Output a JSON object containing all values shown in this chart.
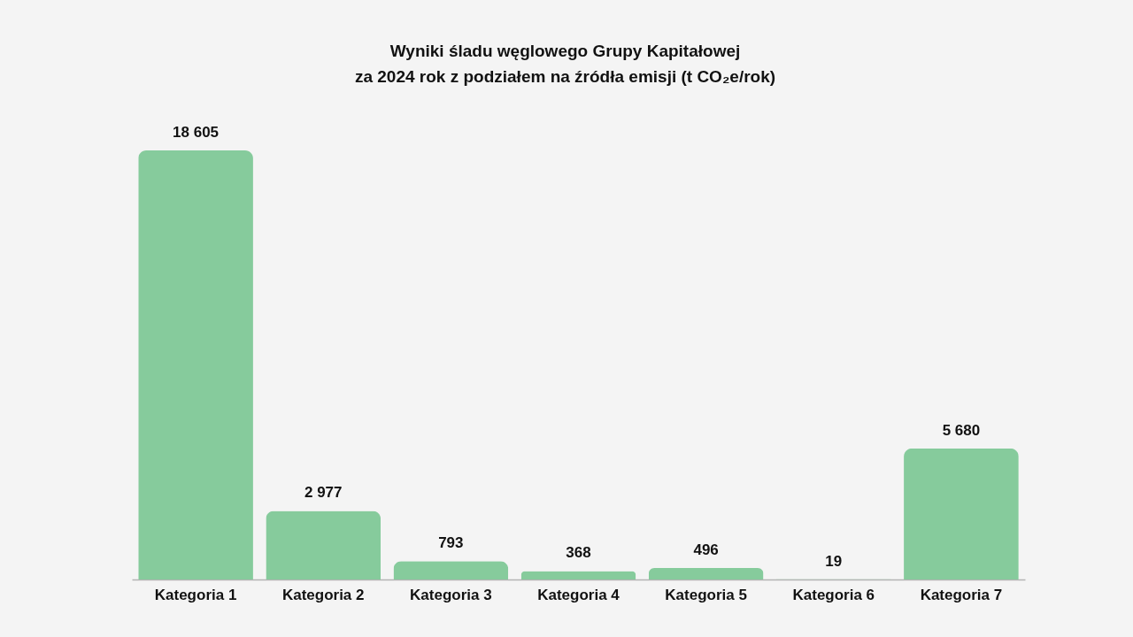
{
  "chart_data": {
    "type": "bar",
    "title": "Wyniki śladu węglowego Grupy Kapitałowej\nza 2024 rok z podziałem na źródła emisji (t CO₂e/rok)",
    "categories": [
      "Kategoria 1",
      "Kategoria 2",
      "Kategoria 3",
      "Kategoria 4",
      "Kategoria 5",
      "Kategoria 6",
      "Kategoria 7"
    ],
    "values": [
      18605,
      2977,
      793,
      368,
      496,
      19,
      5680
    ],
    "value_labels": [
      "18 605",
      "2 977",
      "793",
      "368",
      "496",
      "19",
      "5 680"
    ],
    "color": "#86cb9c",
    "grid": false,
    "tick_labels": "x"
  }
}
